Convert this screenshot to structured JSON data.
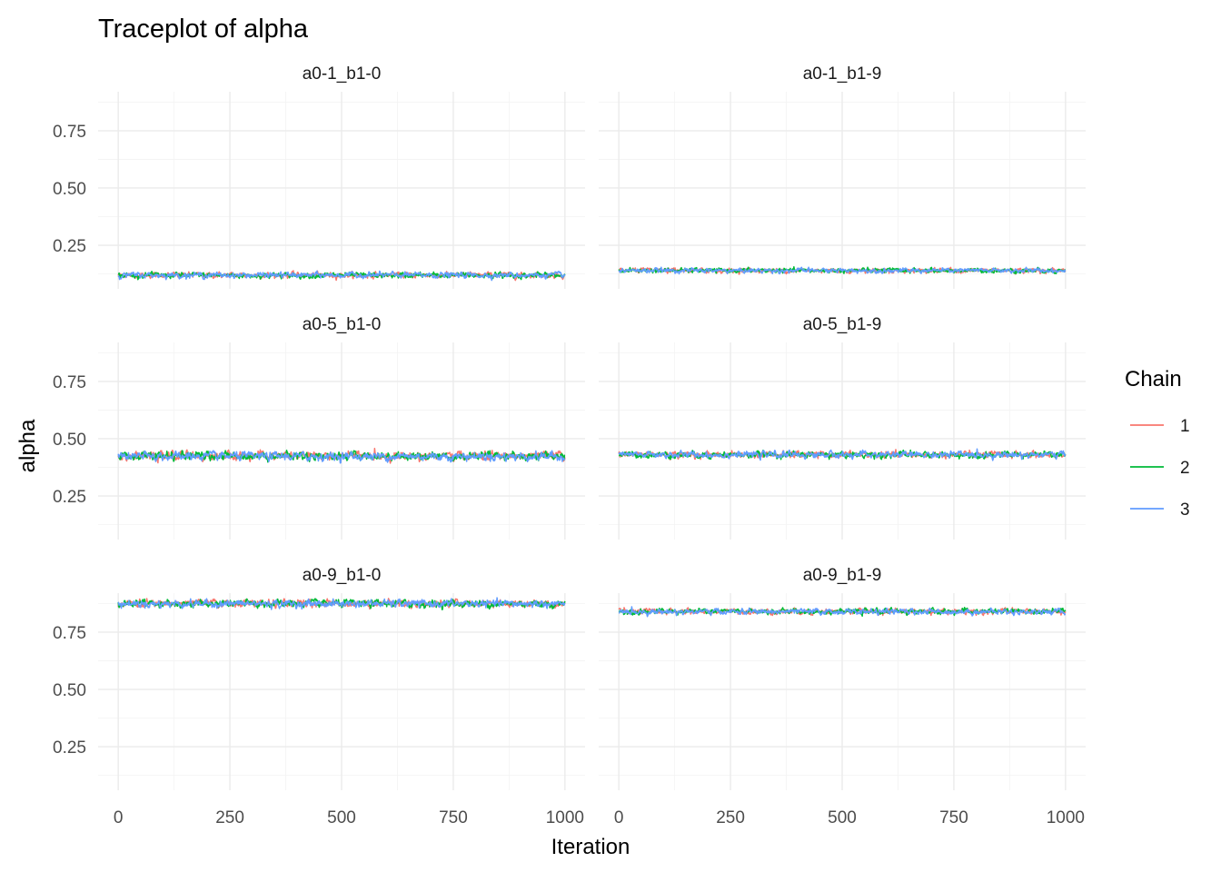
{
  "chart_data": {
    "type": "line",
    "title": "Traceplot of alpha",
    "xlabel": "Iteration",
    "ylabel": "alpha",
    "xlim": [
      -45,
      1045
    ],
    "ylim": [
      0.06,
      0.92
    ],
    "x_ticks": [
      0,
      250,
      500,
      750,
      1000
    ],
    "x_tick_labels": [
      "0",
      "250",
      "500",
      "750",
      "1000"
    ],
    "y_ticks": [
      0.25,
      0.5,
      0.75
    ],
    "y_tick_labels": [
      "0.25",
      "0.50",
      "0.75"
    ],
    "grid": true,
    "legend": {
      "title": "Chain",
      "position": "right",
      "entries": [
        {
          "label": "1",
          "color": "#F8766D"
        },
        {
          "label": "2",
          "color": "#00BA38"
        },
        {
          "label": "3",
          "color": "#619CFF"
        }
      ]
    },
    "iterations": [
      0,
      1000
    ],
    "panels": [
      {
        "label": "a0-1_b1-0",
        "series": [
          {
            "chain": "1",
            "mean": 0.12,
            "spread": 0.006
          },
          {
            "chain": "2",
            "mean": 0.119,
            "spread": 0.006
          },
          {
            "chain": "3",
            "mean": 0.12,
            "spread": 0.006
          }
        ]
      },
      {
        "label": "a0-1_b1-9",
        "series": [
          {
            "chain": "1",
            "mean": 0.14,
            "spread": 0.005
          },
          {
            "chain": "2",
            "mean": 0.14,
            "spread": 0.005
          },
          {
            "chain": "3",
            "mean": 0.14,
            "spread": 0.005
          }
        ]
      },
      {
        "label": "a0-5_b1-0",
        "series": [
          {
            "chain": "1",
            "mean": 0.425,
            "spread": 0.009
          },
          {
            "chain": "2",
            "mean": 0.425,
            "spread": 0.009
          },
          {
            "chain": "3",
            "mean": 0.423,
            "spread": 0.009
          }
        ]
      },
      {
        "label": "a0-5_b1-9",
        "series": [
          {
            "chain": "1",
            "mean": 0.43,
            "spread": 0.007
          },
          {
            "chain": "2",
            "mean": 0.43,
            "spread": 0.007
          },
          {
            "chain": "3",
            "mean": 0.43,
            "spread": 0.007
          }
        ]
      },
      {
        "label": "a0-9_b1-0",
        "series": [
          {
            "chain": "1",
            "mean": 0.875,
            "spread": 0.008
          },
          {
            "chain": "2",
            "mean": 0.874,
            "spread": 0.008
          },
          {
            "chain": "3",
            "mean": 0.874,
            "spread": 0.008
          }
        ]
      },
      {
        "label": "a0-9_b1-9",
        "series": [
          {
            "chain": "1",
            "mean": 0.84,
            "spread": 0.006
          },
          {
            "chain": "2",
            "mean": 0.84,
            "spread": 0.006
          },
          {
            "chain": "3",
            "mean": 0.839,
            "spread": 0.006
          }
        ]
      }
    ]
  }
}
